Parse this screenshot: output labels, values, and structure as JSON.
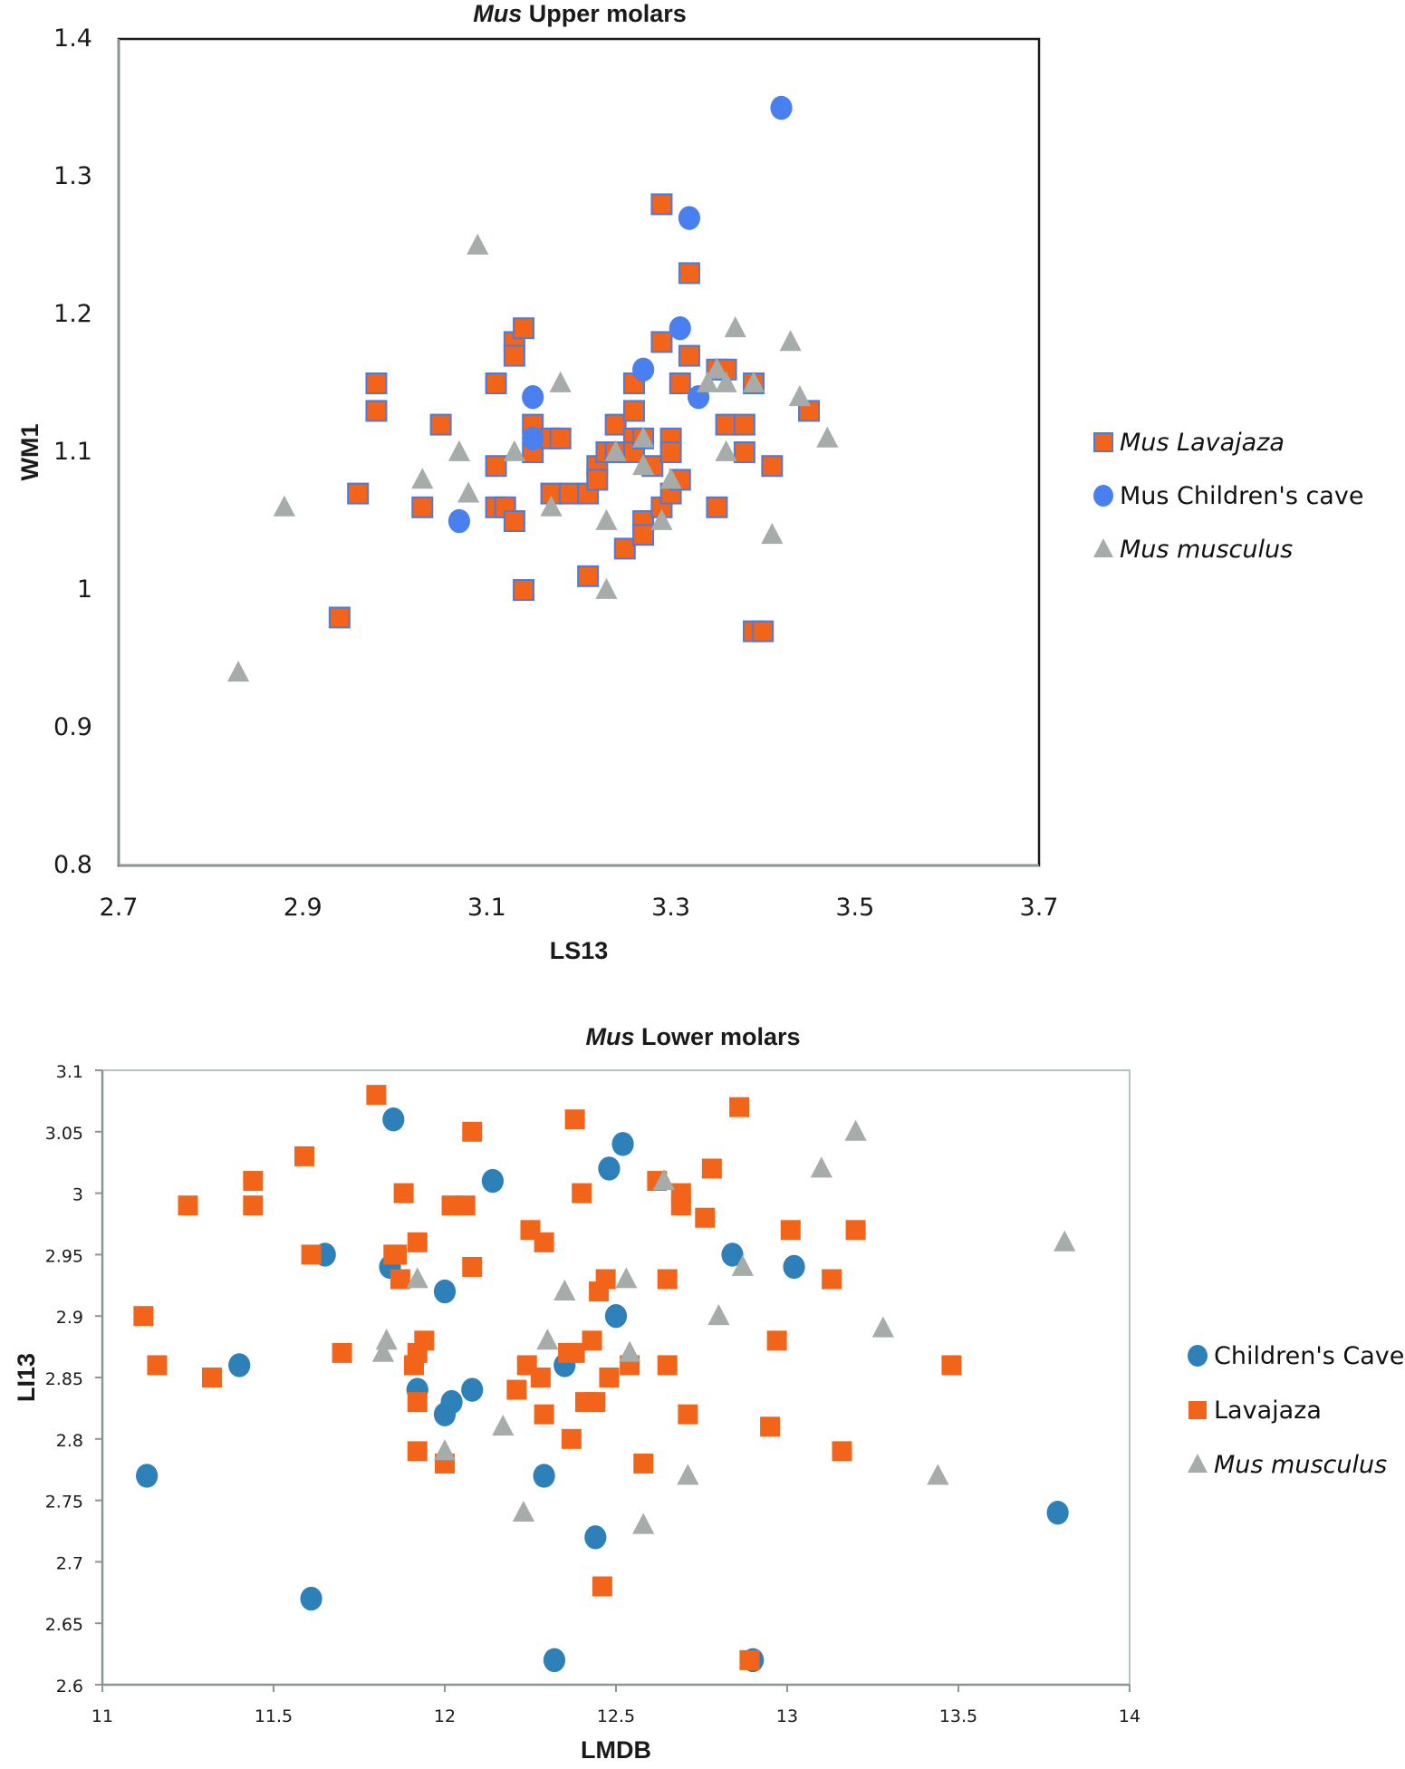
{
  "chart_data": [
    {
      "type": "scatter",
      "title_italic": "Mus",
      "title_rest": " Upper molars",
      "xlabel": "LS13",
      "ylabel": "WM1",
      "xlim": [
        2.7,
        3.7
      ],
      "ylim": [
        0.8,
        1.4
      ],
      "xticks": [
        "2.7",
        "2.9",
        "3.1",
        "3.3",
        "3.5",
        "3.7"
      ],
      "yticks": [
        "0.8",
        "0.9",
        "1",
        "1.1",
        "1.2",
        "1.3",
        "1.4"
      ],
      "grid": false,
      "legend_position": "right",
      "series": [
        {
          "name": "Mus Lavajaza",
          "italic": true,
          "marker": "square",
          "color": "#f26419",
          "edge": "#4a7be0",
          "points": [
            [
              2.94,
              0.98
            ],
            [
              2.96,
              1.07
            ],
            [
              2.98,
              1.15
            ],
            [
              2.98,
              1.13
            ],
            [
              3.03,
              1.06
            ],
            [
              3.05,
              1.12
            ],
            [
              3.11,
              1.15
            ],
            [
              3.11,
              1.09
            ],
            [
              3.11,
              1.06
            ],
            [
              3.12,
              1.06
            ],
            [
              3.13,
              1.05
            ],
            [
              3.13,
              1.18
            ],
            [
              3.13,
              1.17
            ],
            [
              3.14,
              1.19
            ],
            [
              3.14,
              1.0
            ],
            [
              3.15,
              1.12
            ],
            [
              3.15,
              1.1
            ],
            [
              3.17,
              1.11
            ],
            [
              3.18,
              1.11
            ],
            [
              3.17,
              1.07
            ],
            [
              3.19,
              1.07
            ],
            [
              3.21,
              1.07
            ],
            [
              3.21,
              1.01
            ],
            [
              3.22,
              1.09
            ],
            [
              3.22,
              1.08
            ],
            [
              3.23,
              1.1
            ],
            [
              3.24,
              1.12
            ],
            [
              3.24,
              1.1
            ],
            [
              3.25,
              1.03
            ],
            [
              3.26,
              1.15
            ],
            [
              3.26,
              1.13
            ],
            [
              3.26,
              1.11
            ],
            [
              3.26,
              1.1
            ],
            [
              3.27,
              1.11
            ],
            [
              3.27,
              1.05
            ],
            [
              3.27,
              1.04
            ],
            [
              3.28,
              1.09
            ],
            [
              3.29,
              1.28
            ],
            [
              3.29,
              1.18
            ],
            [
              3.29,
              1.06
            ],
            [
              3.3,
              1.11
            ],
            [
              3.3,
              1.1
            ],
            [
              3.3,
              1.07
            ],
            [
              3.31,
              1.15
            ],
            [
              3.31,
              1.08
            ],
            [
              3.32,
              1.23
            ],
            [
              3.32,
              1.17
            ],
            [
              3.35,
              1.16
            ],
            [
              3.36,
              1.16
            ],
            [
              3.35,
              1.06
            ],
            [
              3.36,
              1.12
            ],
            [
              3.38,
              1.12
            ],
            [
              3.38,
              1.1
            ],
            [
              3.39,
              1.15
            ],
            [
              3.39,
              0.97
            ],
            [
              3.4,
              0.97
            ],
            [
              3.41,
              1.09
            ],
            [
              3.45,
              1.13
            ]
          ]
        },
        {
          "name": "Mus Children's cave",
          "italic": false,
          "marker": "circle",
          "color": "#4a7ff0",
          "points": [
            [
              3.07,
              1.05
            ],
            [
              3.15,
              1.14
            ],
            [
              3.15,
              1.11
            ],
            [
              3.27,
              1.16
            ],
            [
              3.31,
              1.19
            ],
            [
              3.32,
              1.27
            ],
            [
              3.33,
              1.14
            ],
            [
              3.42,
              1.35
            ]
          ]
        },
        {
          "name": "Mus musculus",
          "italic": true,
          "marker": "triangle",
          "color": "#a5aca9",
          "points": [
            [
              2.83,
              0.94
            ],
            [
              2.88,
              1.06
            ],
            [
              3.03,
              1.08
            ],
            [
              3.07,
              1.1
            ],
            [
              3.08,
              1.07
            ],
            [
              3.09,
              1.25
            ],
            [
              3.13,
              1.1
            ],
            [
              3.17,
              1.06
            ],
            [
              3.18,
              1.15
            ],
            [
              3.23,
              1.05
            ],
            [
              3.23,
              1.0
            ],
            [
              3.24,
              1.1
            ],
            [
              3.27,
              1.11
            ],
            [
              3.27,
              1.09
            ],
            [
              3.29,
              1.05
            ],
            [
              3.3,
              1.08
            ],
            [
              3.34,
              1.15
            ],
            [
              3.35,
              1.16
            ],
            [
              3.36,
              1.15
            ],
            [
              3.36,
              1.1
            ],
            [
              3.37,
              1.19
            ],
            [
              3.39,
              1.15
            ],
            [
              3.41,
              1.04
            ],
            [
              3.43,
              1.18
            ],
            [
              3.44,
              1.14
            ],
            [
              3.47,
              1.11
            ]
          ]
        }
      ]
    },
    {
      "type": "scatter",
      "title_italic": "Mus",
      "title_rest": " Lower molars",
      "xlabel": "LMDB",
      "ylabel": "LI13",
      "xlim": [
        11,
        14
      ],
      "ylim": [
        2.6,
        3.1
      ],
      "xticks": [
        "11",
        "11.5",
        "12",
        "12.5",
        "13",
        "13.5",
        "14"
      ],
      "yticks": [
        "2.6",
        "2.65",
        "2.7",
        "2.75",
        "2.8",
        "2.85",
        "2.9",
        "2.95",
        "3",
        "3.05",
        "3.1"
      ],
      "grid": false,
      "legend_position": "right",
      "series": [
        {
          "name": "Children's Cave",
          "italic": false,
          "marker": "circle",
          "color": "#2e80b8",
          "points": [
            [
              11.13,
              2.77
            ],
            [
              11.4,
              2.86
            ],
            [
              11.61,
              2.67
            ],
            [
              11.65,
              2.95
            ],
            [
              11.84,
              2.94
            ],
            [
              11.85,
              3.06
            ],
            [
              11.92,
              2.84
            ],
            [
              12.0,
              2.92
            ],
            [
              12.0,
              2.82
            ],
            [
              12.02,
              2.83
            ],
            [
              12.08,
              2.84
            ],
            [
              12.14,
              3.01
            ],
            [
              12.29,
              2.77
            ],
            [
              12.32,
              2.62
            ],
            [
              12.35,
              2.86
            ],
            [
              12.44,
              2.72
            ],
            [
              12.48,
              3.02
            ],
            [
              12.5,
              2.9
            ],
            [
              12.52,
              3.04
            ],
            [
              12.84,
              2.95
            ],
            [
              12.9,
              2.62
            ],
            [
              13.02,
              2.94
            ],
            [
              13.79,
              2.74
            ]
          ]
        },
        {
          "name": "Lavajaza",
          "italic": false,
          "marker": "square",
          "color": "#f26419",
          "points": [
            [
              11.12,
              2.9
            ],
            [
              11.16,
              2.86
            ],
            [
              11.25,
              2.99
            ],
            [
              11.32,
              2.85
            ],
            [
              11.44,
              3.01
            ],
            [
              11.44,
              2.99
            ],
            [
              11.59,
              3.03
            ],
            [
              11.61,
              2.95
            ],
            [
              11.7,
              2.87
            ],
            [
              11.8,
              3.08
            ],
            [
              11.85,
              2.95
            ],
            [
              11.86,
              2.95
            ],
            [
              11.87,
              2.93
            ],
            [
              11.88,
              3.0
            ],
            [
              11.91,
              2.86
            ],
            [
              11.92,
              2.96
            ],
            [
              11.92,
              2.87
            ],
            [
              11.92,
              2.83
            ],
            [
              11.92,
              2.79
            ],
            [
              11.94,
              2.88
            ],
            [
              12.0,
              2.78
            ],
            [
              12.02,
              2.99
            ],
            [
              12.06,
              2.99
            ],
            [
              12.08,
              3.05
            ],
            [
              12.08,
              2.94
            ],
            [
              12.21,
              2.84
            ],
            [
              12.24,
              2.86
            ],
            [
              12.25,
              2.97
            ],
            [
              12.28,
              2.85
            ],
            [
              12.29,
              2.96
            ],
            [
              12.29,
              2.82
            ],
            [
              12.36,
              2.87
            ],
            [
              12.37,
              2.8
            ],
            [
              12.38,
              3.06
            ],
            [
              12.38,
              2.87
            ],
            [
              12.4,
              3.0
            ],
            [
              12.41,
              2.83
            ],
            [
              12.43,
              2.88
            ],
            [
              12.44,
              2.83
            ],
            [
              12.45,
              2.92
            ],
            [
              12.46,
              2.68
            ],
            [
              12.47,
              2.93
            ],
            [
              12.48,
              2.85
            ],
            [
              12.54,
              2.86
            ],
            [
              12.58,
              2.78
            ],
            [
              12.62,
              3.01
            ],
            [
              12.65,
              2.93
            ],
            [
              12.65,
              2.86
            ],
            [
              12.69,
              3.0
            ],
            [
              12.69,
              2.99
            ],
            [
              12.71,
              2.82
            ],
            [
              12.76,
              2.98
            ],
            [
              12.78,
              3.02
            ],
            [
              12.86,
              3.07
            ],
            [
              12.89,
              2.62
            ],
            [
              12.95,
              2.81
            ],
            [
              12.97,
              2.88
            ],
            [
              13.01,
              2.97
            ],
            [
              13.13,
              2.93
            ],
            [
              13.16,
              2.79
            ],
            [
              13.2,
              2.97
            ],
            [
              13.48,
              2.86
            ]
          ]
        },
        {
          "name": "Mus musculus",
          "italic": true,
          "marker": "triangle",
          "color": "#a5aca9",
          "points": [
            [
              11.82,
              2.87
            ],
            [
              11.83,
              2.88
            ],
            [
              11.92,
              2.93
            ],
            [
              12.0,
              2.79
            ],
            [
              12.17,
              2.81
            ],
            [
              12.23,
              2.74
            ],
            [
              12.3,
              2.88
            ],
            [
              12.35,
              2.92
            ],
            [
              12.53,
              2.93
            ],
            [
              12.54,
              2.87
            ],
            [
              12.58,
              2.73
            ],
            [
              12.64,
              3.01
            ],
            [
              12.71,
              2.77
            ],
            [
              12.8,
              2.9
            ],
            [
              12.87,
              2.94
            ],
            [
              13.1,
              3.02
            ],
            [
              13.2,
              3.05
            ],
            [
              13.28,
              2.89
            ],
            [
              13.44,
              2.77
            ],
            [
              13.81,
              2.96
            ]
          ]
        }
      ]
    }
  ]
}
